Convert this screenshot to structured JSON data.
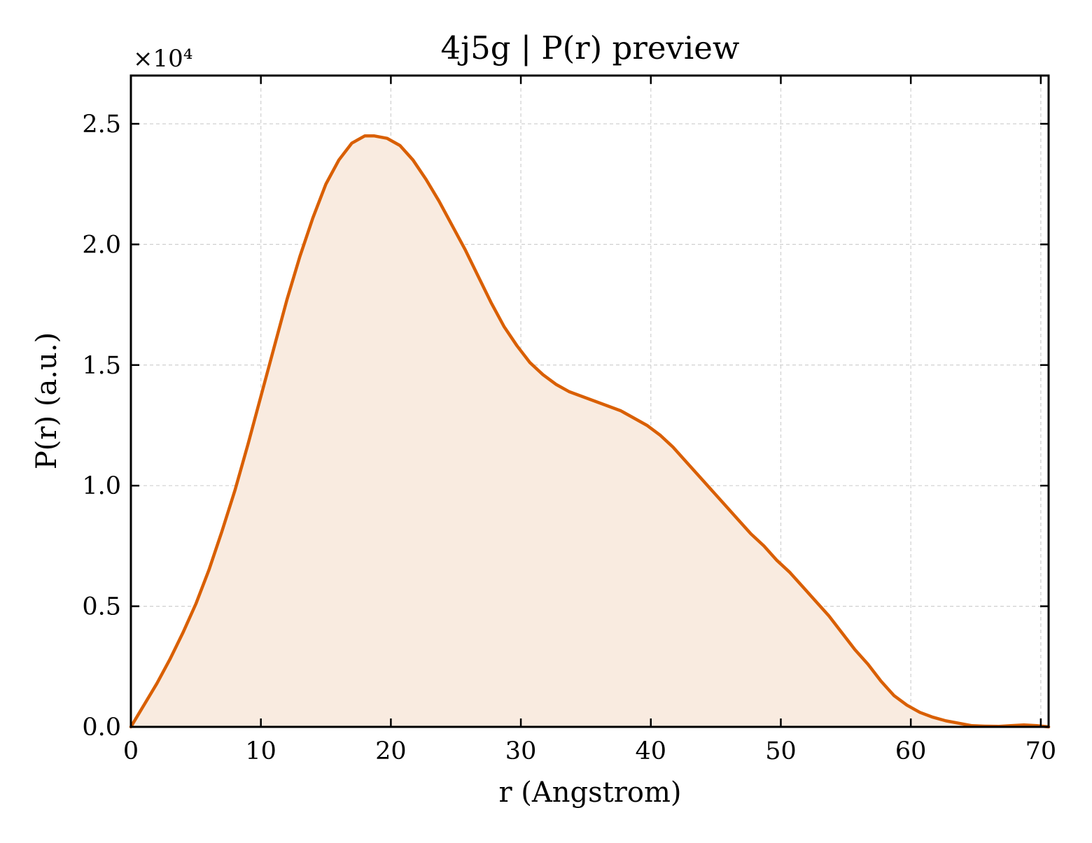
{
  "chart_data": {
    "type": "area",
    "title": "4j5g | P(r) preview",
    "xlabel": "r (Angstrom)",
    "ylabel": "P(r) (a.u.)",
    "y_offset_label": "×10⁴",
    "xlim": [
      0,
      70.6
    ],
    "ylim": [
      0,
      27000
    ],
    "x_ticks": [
      0,
      10,
      20,
      30,
      40,
      50,
      60,
      70
    ],
    "x_tick_labels": [
      "0",
      "10",
      "20",
      "30",
      "40",
      "50",
      "60",
      "70"
    ],
    "y_ticks": [
      0,
      5000,
      10000,
      15000,
      20000,
      25000
    ],
    "y_tick_labels": [
      "0.0",
      "0.5",
      "1.0",
      "1.5",
      "2.0",
      "2.5"
    ],
    "grid": true,
    "colors": {
      "line": "#d95f02",
      "fill": "#f9ebe0",
      "grid": "#d0d0d0",
      "axis": "#000000"
    },
    "series": [
      {
        "x": [
          0,
          1,
          2,
          3,
          4,
          5,
          6,
          7,
          8,
          9,
          10,
          11,
          12,
          13,
          14,
          15,
          16,
          17,
          18,
          18.7,
          19.7,
          20.7,
          21.7,
          22.7,
          23.7,
          24.7,
          25.7,
          26.7,
          27.7,
          28.7,
          29.7,
          30.7,
          31.7,
          32.7,
          33.7,
          34.7,
          35.7,
          36.7,
          37.7,
          38.7,
          39.7,
          40.7,
          41.7,
          42.7,
          43.7,
          44.7,
          45.7,
          46.7,
          47.7,
          48.7,
          49.7,
          50.7,
          51.7,
          52.7,
          53.7,
          54.7,
          55.7,
          56.7,
          57.7,
          58.7,
          59.7,
          60.7,
          61.7,
          62.7,
          63.7,
          64.7,
          65.7,
          66.7,
          67.7,
          68.7,
          69.7,
          70.6
        ],
        "y": [
          0,
          900,
          1800,
          2800,
          3900,
          5100,
          6500,
          8100,
          9800,
          11700,
          13700,
          15700,
          17700,
          19500,
          21100,
          22500,
          23500,
          24200,
          24500,
          24500,
          24400,
          24100,
          23500,
          22700,
          21800,
          20800,
          19800,
          18700,
          17600,
          16600,
          15800,
          15100,
          14600,
          14200,
          13900,
          13700,
          13500,
          13300,
          13100,
          12800,
          12500,
          12100,
          11600,
          11000,
          10400,
          9800,
          9200,
          8600,
          8000,
          7500,
          6900,
          6400,
          5800,
          5200,
          4600,
          3900,
          3200,
          2600,
          1900,
          1300,
          900,
          600,
          400,
          250,
          150,
          50,
          30,
          20,
          50,
          80,
          50,
          0
        ]
      }
    ]
  }
}
